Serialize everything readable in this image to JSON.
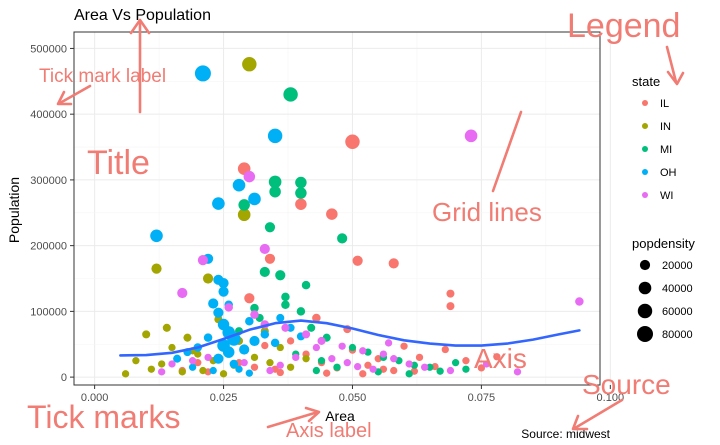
{
  "chart_data": {
    "type": "scatter",
    "title": "Area Vs Population",
    "xlabel": "Area",
    "ylabel": "Population",
    "caption": "Source: midwest",
    "xlim": [
      -0.004,
      0.098
    ],
    "ylim": [
      -12000,
      525000
    ],
    "x_ticks": [
      0.0,
      0.025,
      0.05,
      0.075,
      0.1
    ],
    "x_tick_labels": [
      "0.000",
      "0.025",
      "0.050",
      "0.075",
      "0.100"
    ],
    "y_ticks": [
      0,
      100000,
      200000,
      300000,
      400000,
      500000
    ],
    "y_tick_labels": [
      "0",
      "100000",
      "200000",
      "300000",
      "400000",
      "500000"
    ],
    "grid": true,
    "legend_position": "right",
    "color_legend": {
      "title": "state",
      "items": [
        {
          "label": "IL",
          "color": "#F8766D"
        },
        {
          "label": "IN",
          "color": "#A3A500"
        },
        {
          "label": "MI",
          "color": "#00BF7D"
        },
        {
          "label": "OH",
          "color": "#00B0F6"
        },
        {
          "label": "WI",
          "color": "#E76BF3"
        }
      ]
    },
    "size_legend": {
      "title": "popdensity",
      "labels": [
        "20000",
        "40000",
        "60000",
        "80000"
      ],
      "values": [
        20000,
        40000,
        60000,
        80000
      ]
    },
    "smooth_line": {
      "color": "#3366FF",
      "x": [
        0.005,
        0.01,
        0.015,
        0.02,
        0.025,
        0.03,
        0.035,
        0.04,
        0.045,
        0.05,
        0.055,
        0.06,
        0.065,
        0.07,
        0.075,
        0.08,
        0.085,
        0.09,
        0.094
      ],
      "y": [
        33000,
        33500,
        37000,
        45000,
        58000,
        72000,
        82000,
        86000,
        82000,
        74000,
        64000,
        56000,
        51000,
        48000,
        48000,
        51000,
        57000,
        65000,
        71000
      ]
    },
    "series": [
      {
        "name": "IL",
        "points": [
          [
            0.05,
            358000,
            60000
          ],
          [
            0.029,
            317000,
            40000
          ],
          [
            0.04,
            263000,
            30000
          ],
          [
            0.046,
            248000,
            30000
          ],
          [
            0.051,
            177000,
            20000
          ],
          [
            0.058,
            173000,
            20000
          ],
          [
            0.034,
            180000,
            20000
          ],
          [
            0.069,
            127000,
            8000
          ],
          [
            0.069,
            108000,
            8000
          ],
          [
            0.03,
            120000,
            20000
          ],
          [
            0.043,
            90000,
            10000
          ],
          [
            0.049,
            73000,
            8000
          ],
          [
            0.05,
            41000,
            5000
          ],
          [
            0.055,
            28000,
            5000
          ],
          [
            0.06,
            47000,
            5000
          ],
          [
            0.063,
            30000,
            5000
          ],
          [
            0.068,
            42000,
            5000
          ],
          [
            0.072,
            25000,
            5000
          ],
          [
            0.078,
            31000,
            5000
          ],
          [
            0.035,
            12000,
            5000
          ],
          [
            0.038,
            55000,
            5000
          ],
          [
            0.041,
            35000,
            5000
          ],
          [
            0.044,
            22000,
            5000
          ],
          [
            0.047,
            14000,
            5000
          ],
          [
            0.053,
            18000,
            5000
          ],
          [
            0.056,
            12000,
            5000
          ],
          [
            0.062,
            9000,
            5000
          ],
          [
            0.066,
            16000,
            5000
          ],
          [
            0.026,
            40000,
            5000
          ],
          [
            0.028,
            22000,
            5000
          ],
          [
            0.031,
            15000,
            5000
          ],
          [
            0.033,
            48000,
            5000
          ],
          [
            0.02,
            22000,
            5000
          ],
          [
            0.017,
            10000,
            5000
          ],
          [
            0.022,
            8000,
            5000
          ],
          [
            0.036,
            7000,
            5000
          ],
          [
            0.045,
            6000,
            5000
          ],
          [
            0.052,
            5000,
            5000
          ],
          [
            0.058,
            10000,
            5000
          ],
          [
            0.075,
            14000,
            5000
          ]
        ]
      },
      {
        "name": "IN",
        "points": [
          [
            0.03,
            476000,
            60000
          ],
          [
            0.012,
            165000,
            20000
          ],
          [
            0.029,
            247000,
            40000
          ],
          [
            0.022,
            150000,
            20000
          ],
          [
            0.01,
            65000,
            8000
          ],
          [
            0.014,
            75000,
            8000
          ],
          [
            0.018,
            60000,
            8000
          ],
          [
            0.024,
            88000,
            8000
          ],
          [
            0.028,
            55000,
            8000
          ],
          [
            0.033,
            70000,
            8000
          ],
          [
            0.036,
            45000,
            5000
          ],
          [
            0.02,
            35000,
            5000
          ],
          [
            0.016,
            28000,
            5000
          ],
          [
            0.013,
            20000,
            5000
          ],
          [
            0.011,
            12000,
            5000
          ],
          [
            0.015,
            45000,
            5000
          ],
          [
            0.019,
            40000,
            5000
          ],
          [
            0.023,
            25000,
            5000
          ],
          [
            0.027,
            18000,
            5000
          ],
          [
            0.031,
            30000,
            5000
          ],
          [
            0.034,
            22000,
            5000
          ],
          [
            0.038,
            15000,
            5000
          ],
          [
            0.041,
            28000,
            5000
          ],
          [
            0.008,
            25000,
            5000
          ],
          [
            0.006,
            5000,
            5000
          ],
          [
            0.021,
            10000,
            5000
          ],
          [
            0.025,
            5000,
            5000
          ],
          [
            0.017,
            8000,
            5000
          ]
        ]
      },
      {
        "name": "MI",
        "points": [
          [
            0.038,
            430000,
            60000
          ],
          [
            0.035,
            297000,
            40000
          ],
          [
            0.035,
            282000,
            30000
          ],
          [
            0.04,
            296000,
            30000
          ],
          [
            0.04,
            280000,
            30000
          ],
          [
            0.048,
            211000,
            20000
          ],
          [
            0.034,
            228000,
            20000
          ],
          [
            0.029,
            262000,
            30000
          ],
          [
            0.033,
            160000,
            20000
          ],
          [
            0.036,
            155000,
            20000
          ],
          [
            0.037,
            110000,
            10000
          ],
          [
            0.04,
            100000,
            10000
          ],
          [
            0.042,
            75000,
            8000
          ],
          [
            0.045,
            60000,
            8000
          ],
          [
            0.05,
            45000,
            5000
          ],
          [
            0.053,
            38000,
            5000
          ],
          [
            0.056,
            30000,
            5000
          ],
          [
            0.059,
            25000,
            5000
          ],
          [
            0.062,
            18000,
            5000
          ],
          [
            0.065,
            15000,
            5000
          ],
          [
            0.07,
            22000,
            5000
          ],
          [
            0.047,
            15000,
            5000
          ],
          [
            0.044,
            25000,
            5000
          ],
          [
            0.039,
            35000,
            5000
          ],
          [
            0.032,
            90000,
            8000
          ],
          [
            0.028,
            70000,
            8000
          ],
          [
            0.025,
            50000,
            5000
          ],
          [
            0.043,
            10000,
            5000
          ],
          [
            0.055,
            8000,
            5000
          ],
          [
            0.061,
            5000,
            5000
          ],
          [
            0.067,
            9000,
            5000
          ],
          [
            0.072,
            12000,
            5000
          ],
          [
            0.037,
            122000,
            10000
          ],
          [
            0.031,
            105000,
            10000
          ],
          [
            0.041,
            140000,
            10000
          ]
        ]
      },
      {
        "name": "OH",
        "points": [
          [
            0.021,
            462000,
            80000
          ],
          [
            0.035,
            367000,
            60000
          ],
          [
            0.028,
            292000,
            40000
          ],
          [
            0.024,
            264000,
            40000
          ],
          [
            0.031,
            271000,
            40000
          ],
          [
            0.012,
            215000,
            40000
          ],
          [
            0.022,
            180000,
            20000
          ],
          [
            0.025,
            143000,
            20000
          ],
          [
            0.024,
            148000,
            20000
          ],
          [
            0.025,
            130000,
            20000
          ],
          [
            0.023,
            112000,
            20000
          ],
          [
            0.024,
            98000,
            20000
          ],
          [
            0.025,
            80000,
            30000
          ],
          [
            0.026,
            68000,
            40000
          ],
          [
            0.027,
            58000,
            50000
          ],
          [
            0.025,
            48000,
            40000
          ],
          [
            0.026,
            38000,
            30000
          ],
          [
            0.024,
            28000,
            20000
          ],
          [
            0.027,
            20000,
            10000
          ],
          [
            0.029,
            42000,
            20000
          ],
          [
            0.031,
            55000,
            20000
          ],
          [
            0.033,
            65000,
            10000
          ],
          [
            0.035,
            52000,
            10000
          ],
          [
            0.022,
            60000,
            10000
          ],
          [
            0.02,
            45000,
            10000
          ],
          [
            0.018,
            38000,
            8000
          ],
          [
            0.016,
            28000,
            8000
          ],
          [
            0.019,
            15000,
            5000
          ],
          [
            0.023,
            10000,
            5000
          ],
          [
            0.028,
            12000,
            5000
          ],
          [
            0.03,
            6000,
            5000
          ],
          [
            0.036,
            90000,
            8000
          ],
          [
            0.038,
            75000,
            8000
          ],
          [
            0.04,
            62000,
            8000
          ],
          [
            0.03,
            85000,
            10000
          ],
          [
            0.026,
            110000,
            10000
          ]
        ]
      },
      {
        "name": "WI",
        "points": [
          [
            0.073,
            367000,
            40000
          ],
          [
            0.03,
            305000,
            30000
          ],
          [
            0.033,
            195000,
            20000
          ],
          [
            0.021,
            178000,
            20000
          ],
          [
            0.017,
            128000,
            20000
          ],
          [
            0.094,
            115000,
            10000
          ],
          [
            0.026,
            106000,
            10000
          ],
          [
            0.031,
            95000,
            10000
          ],
          [
            0.033,
            80000,
            10000
          ],
          [
            0.037,
            75000,
            8000
          ],
          [
            0.041,
            65000,
            8000
          ],
          [
            0.044,
            55000,
            8000
          ],
          [
            0.048,
            47000,
            5000
          ],
          [
            0.052,
            40000,
            5000
          ],
          [
            0.056,
            35000,
            5000
          ],
          [
            0.058,
            28000,
            5000
          ],
          [
            0.061,
            20000,
            5000
          ],
          [
            0.064,
            15000,
            5000
          ],
          [
            0.069,
            10000,
            5000
          ],
          [
            0.046,
            28000,
            5000
          ],
          [
            0.049,
            22000,
            5000
          ],
          [
            0.051,
            16000,
            5000
          ],
          [
            0.054,
            12000,
            5000
          ],
          [
            0.039,
            30000,
            5000
          ],
          [
            0.036,
            18000,
            5000
          ],
          [
            0.034,
            10000,
            5000
          ],
          [
            0.029,
            22000,
            5000
          ],
          [
            0.022,
            30000,
            5000
          ],
          [
            0.019,
            25000,
            5000
          ],
          [
            0.015,
            20000,
            5000
          ],
          [
            0.013,
            8000,
            5000
          ],
          [
            0.076,
            20000,
            5000
          ],
          [
            0.082,
            8000,
            5000
          ],
          [
            0.057,
            52000,
            5000
          ],
          [
            0.043,
            45000,
            5000
          ]
        ]
      }
    ]
  },
  "annotations": [
    {
      "name": "annot-title",
      "text": "Title",
      "size": 34
    },
    {
      "name": "annot-legend",
      "text": "Legend",
      "size": 34
    },
    {
      "name": "annot-tick-mark-label",
      "text": "Tick mark label",
      "size": 19
    },
    {
      "name": "annot-grid-lines",
      "text": "Grid lines",
      "size": 26
    },
    {
      "name": "annot-axis",
      "text": "Axis",
      "size": 28
    },
    {
      "name": "annot-source",
      "text": "Source",
      "size": 28
    },
    {
      "name": "annot-tick-marks",
      "text": "Tick marks",
      "size": 32
    },
    {
      "name": "annot-axis-label",
      "text": "Axis label",
      "size": 20
    }
  ],
  "annotation_color": "#F07C74"
}
